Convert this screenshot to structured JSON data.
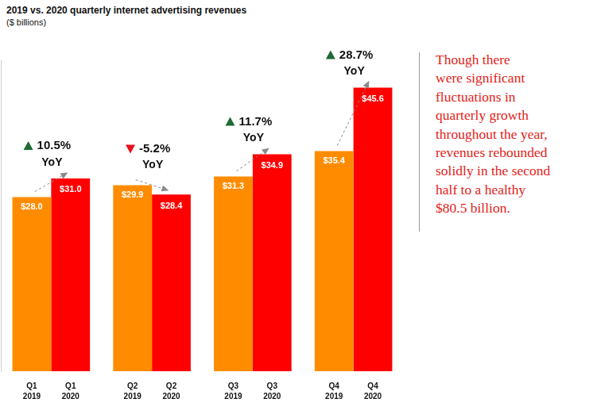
{
  "chart_data": {
    "type": "bar",
    "title": "2019 vs. 2020 quarterly internet advertising revenues",
    "subtitle": "($ billions)",
    "categories": [
      "Q1",
      "Q2",
      "Q3",
      "Q4"
    ],
    "series": [
      {
        "name": "2019",
        "color": "#ff8c00",
        "values": [
          28.0,
          29.9,
          31.3,
          35.4
        ],
        "value_labels": [
          "$28.0",
          "$29.9",
          "$31.3",
          "$35.4"
        ]
      },
      {
        "name": "2020",
        "color": "#ff0000",
        "values": [
          31.0,
          28.4,
          34.9,
          45.6
        ],
        "value_labels": [
          "$31.0",
          "$28.4",
          "$34.9",
          "$45.6"
        ]
      }
    ],
    "growth": [
      10.5,
      -5.2,
      11.7,
      28.7
    ],
    "growth_labels": [
      "10.5%",
      "-5.2%",
      "11.7%",
      "28.7%"
    ],
    "growth_unit": "YoY",
    "annotation": [
      "Though there",
      "were significant",
      "fluctuations in",
      "quarterly growth",
      "throughout the year,",
      "revenues rebounded",
      "solidly in the second",
      "half to a healthy",
      "$80.5 billion."
    ],
    "ylim": [
      0,
      50
    ],
    "yticks": [],
    "grid": false,
    "data_labels": true,
    "tick_labels": "x"
  }
}
